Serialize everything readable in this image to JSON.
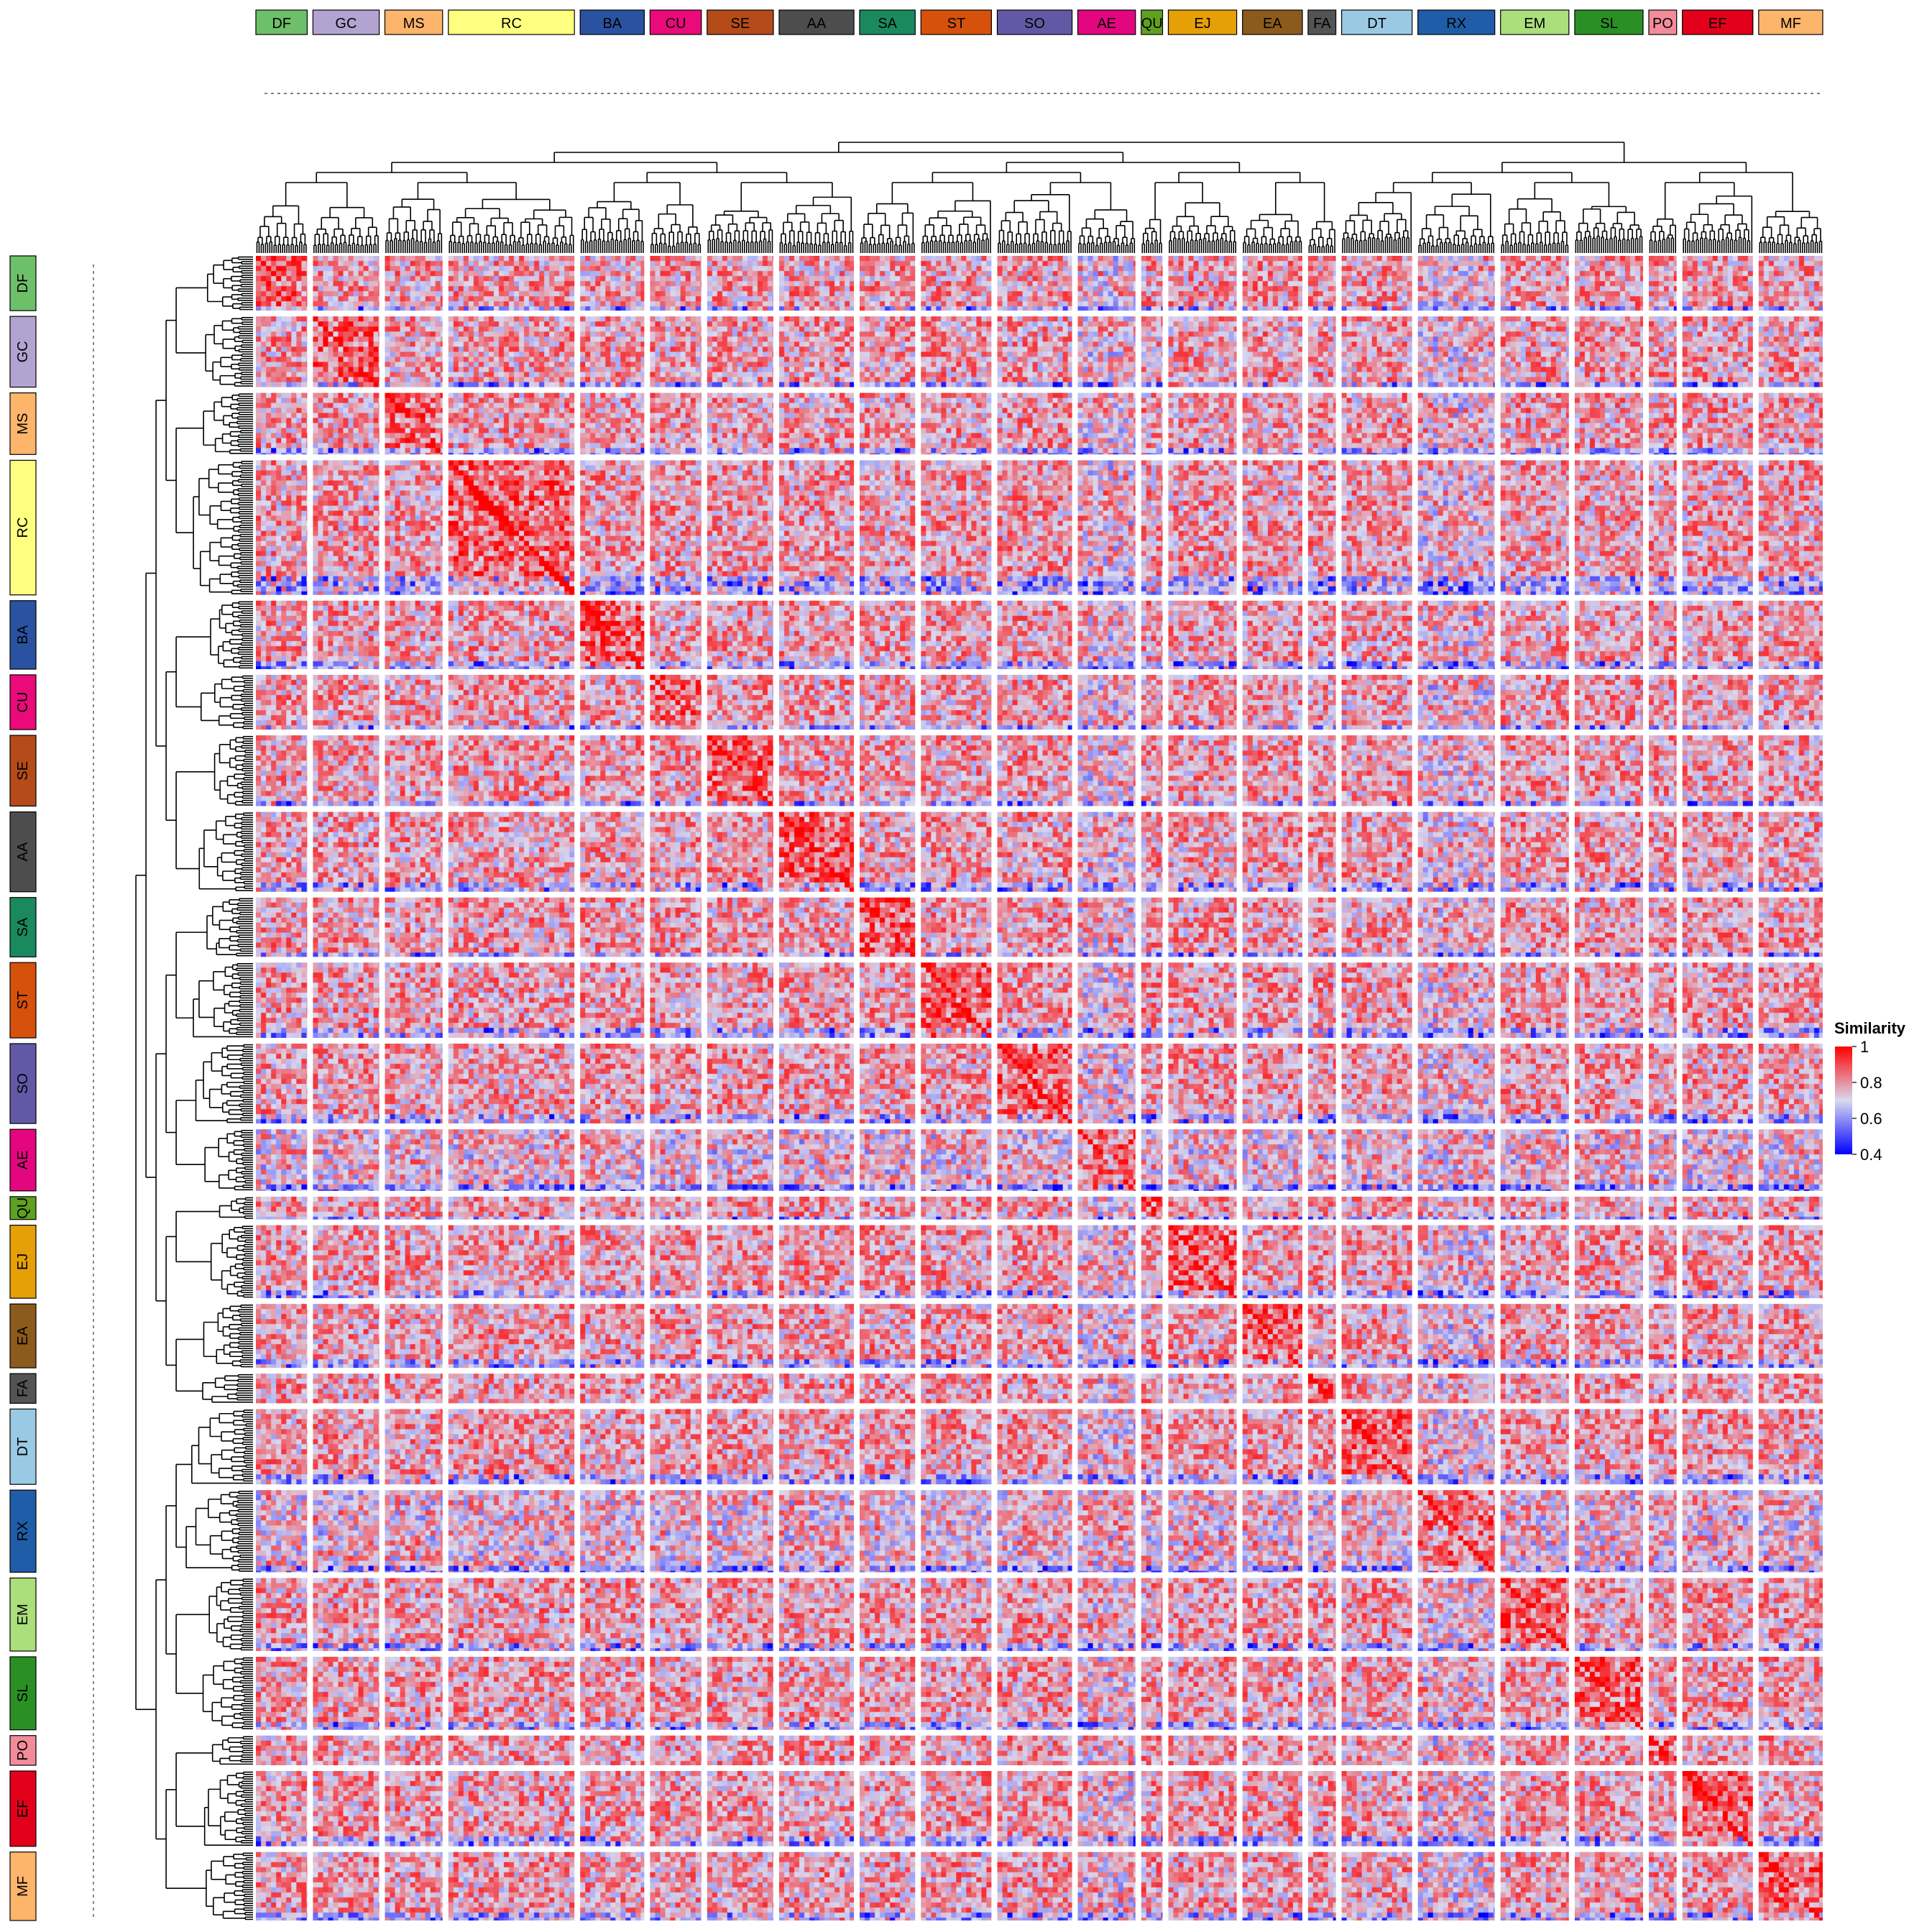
{
  "chart_data": {
    "type": "heatmap",
    "legend": {
      "title": "Similarity",
      "ticks": [
        "1",
        "0.8",
        "0.6",
        "0.4"
      ],
      "tick_values": [
        1.0,
        0.8,
        0.6,
        0.4
      ],
      "range": [
        0.4,
        1.0
      ],
      "colors": {
        "low": "#0000ff",
        "mid": "#d9d9f0",
        "high": "#ff0000"
      },
      "placement": "right"
    },
    "groups": [
      {
        "label": "DF",
        "color": "#6dbf6a",
        "n": 24
      },
      {
        "label": "GC",
        "color": "#b3a3d1",
        "n": 31
      },
      {
        "label": "MS",
        "color": "#fdb46b",
        "n": 27
      },
      {
        "label": "RC",
        "color": "#ffff80",
        "n": 59
      },
      {
        "label": "BA",
        "color": "#2b52a0",
        "n": 30
      },
      {
        "label": "CU",
        "color": "#ea0a7a",
        "n": 24
      },
      {
        "label": "SE",
        "color": "#b44b19",
        "n": 31
      },
      {
        "label": "AA",
        "color": "#4d4d4d",
        "n": 35
      },
      {
        "label": "SA",
        "color": "#1a8a5e",
        "n": 26
      },
      {
        "label": "ST",
        "color": "#d6510c",
        "n": 33
      },
      {
        "label": "SO",
        "color": "#6259a6",
        "n": 35
      },
      {
        "label": "AE",
        "color": "#e4067f",
        "n": 27
      },
      {
        "label": "QU",
        "color": "#5fa020",
        "n": 10
      },
      {
        "label": "EJ",
        "color": "#e5a008",
        "n": 32
      },
      {
        "label": "EA",
        "color": "#8a5b1c",
        "n": 28
      },
      {
        "label": "FA",
        "color": "#545454",
        "n": 13
      },
      {
        "label": "DT",
        "color": "#9ac9e3",
        "n": 33
      },
      {
        "label": "RX",
        "color": "#1f5da8",
        "n": 36
      },
      {
        "label": "EM",
        "color": "#aadf7c",
        "n": 32
      },
      {
        "label": "SL",
        "color": "#2a9025",
        "n": 32
      },
      {
        "label": "PO",
        "color": "#f28c9a",
        "n": 13
      },
      {
        "label": "EF",
        "color": "#e3001b",
        "n": 33
      },
      {
        "label": "MF",
        "color": "#fdb46b",
        "n": 30
      }
    ]
  }
}
